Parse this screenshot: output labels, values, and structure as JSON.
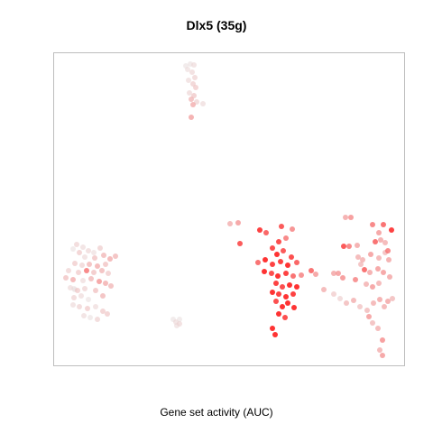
{
  "chart_data": {
    "type": "scatter",
    "title": "Dlx5 (35g)",
    "xlabel": "Gene set activity (AUC)",
    "ylabel": "",
    "xlim": [
      0,
      390
    ],
    "ylim": [
      0,
      348
    ],
    "color_scale": {
      "low": "#e8e8e8",
      "high": "#ff1a1a"
    },
    "points": [
      {
        "x": 147,
        "y": 333,
        "v": 0.05
      },
      {
        "x": 152,
        "y": 335,
        "v": 0.06
      },
      {
        "x": 156,
        "y": 334,
        "v": 0.1
      },
      {
        "x": 149,
        "y": 329,
        "v": 0.08
      },
      {
        "x": 154,
        "y": 326,
        "v": 0.12
      },
      {
        "x": 157,
        "y": 320,
        "v": 0.15
      },
      {
        "x": 150,
        "y": 317,
        "v": 0.1
      },
      {
        "x": 155,
        "y": 313,
        "v": 0.18
      },
      {
        "x": 158,
        "y": 309,
        "v": 0.2
      },
      {
        "x": 151,
        "y": 303,
        "v": 0.12
      },
      {
        "x": 156,
        "y": 300,
        "v": 0.22
      },
      {
        "x": 153,
        "y": 296,
        "v": 0.3
      },
      {
        "x": 159,
        "y": 293,
        "v": 0.15
      },
      {
        "x": 166,
        "y": 291,
        "v": 0.1
      },
      {
        "x": 155,
        "y": 290,
        "v": 0.35
      },
      {
        "x": 153,
        "y": 276,
        "v": 0.4
      },
      {
        "x": 22,
        "y": 130,
        "v": 0.05
      },
      {
        "x": 26,
        "y": 135,
        "v": 0.15
      },
      {
        "x": 33,
        "y": 132,
        "v": 0.1
      },
      {
        "x": 29,
        "y": 126,
        "v": 0.2
      },
      {
        "x": 39,
        "y": 128,
        "v": 0.12
      },
      {
        "x": 45,
        "y": 126,
        "v": 0.08
      },
      {
        "x": 52,
        "y": 131,
        "v": 0.18
      },
      {
        "x": 35,
        "y": 121,
        "v": 0.1
      },
      {
        "x": 46,
        "y": 120,
        "v": 0.25
      },
      {
        "x": 56,
        "y": 123,
        "v": 0.3
      },
      {
        "x": 63,
        "y": 119,
        "v": 0.35
      },
      {
        "x": 69,
        "y": 122,
        "v": 0.3
      },
      {
        "x": 24,
        "y": 114,
        "v": 0.2
      },
      {
        "x": 32,
        "y": 112,
        "v": 0.15
      },
      {
        "x": 40,
        "y": 113,
        "v": 0.3
      },
      {
        "x": 49,
        "y": 111,
        "v": 0.35
      },
      {
        "x": 58,
        "y": 113,
        "v": 0.25
      },
      {
        "x": 17,
        "y": 106,
        "v": 0.15
      },
      {
        "x": 28,
        "y": 104,
        "v": 0.2
      },
      {
        "x": 37,
        "y": 106,
        "v": 0.6
      },
      {
        "x": 45,
        "y": 104,
        "v": 0.25
      },
      {
        "x": 54,
        "y": 106,
        "v": 0.3
      },
      {
        "x": 61,
        "y": 103,
        "v": 0.2
      },
      {
        "x": 14,
        "y": 98,
        "v": 0.25
      },
      {
        "x": 22,
        "y": 96,
        "v": 0.35
      },
      {
        "x": 33,
        "y": 95,
        "v": 0.1
      },
      {
        "x": 42,
        "y": 97,
        "v": 0.3
      },
      {
        "x": 51,
        "y": 94,
        "v": 0.45
      },
      {
        "x": 58,
        "y": 92,
        "v": 0.35
      },
      {
        "x": 64,
        "y": 89,
        "v": 0.3
      },
      {
        "x": 19,
        "y": 87,
        "v": 0.1
      },
      {
        "x": 27,
        "y": 84,
        "v": 0.2
      },
      {
        "x": 35,
        "y": 86,
        "v": 0.15
      },
      {
        "x": 47,
        "y": 84,
        "v": 0.25
      },
      {
        "x": 23,
        "y": 76,
        "v": 0.15
      },
      {
        "x": 31,
        "y": 78,
        "v": 0.1
      },
      {
        "x": 39,
        "y": 74,
        "v": 0.05
      },
      {
        "x": 55,
        "y": 78,
        "v": 0.3
      },
      {
        "x": 22,
        "y": 68,
        "v": 0.1
      },
      {
        "x": 29,
        "y": 66,
        "v": 0.15
      },
      {
        "x": 38,
        "y": 64,
        "v": 0.2
      },
      {
        "x": 47,
        "y": 66,
        "v": 0.1
      },
      {
        "x": 55,
        "y": 61,
        "v": 0.2
      },
      {
        "x": 34,
        "y": 56,
        "v": 0.1
      },
      {
        "x": 41,
        "y": 54,
        "v": 0.05
      },
      {
        "x": 49,
        "y": 52,
        "v": 0.15
      },
      {
        "x": 60,
        "y": 58,
        "v": 0.2
      },
      {
        "x": 24,
        "y": 85,
        "v": 0.05
      },
      {
        "x": 23,
        "y": 86,
        "v": 0.05
      },
      {
        "x": 196,
        "y": 158,
        "v": 0.35
      },
      {
        "x": 205,
        "y": 159,
        "v": 0.45
      },
      {
        "x": 207,
        "y": 136,
        "v": 0.8
      },
      {
        "x": 229,
        "y": 151,
        "v": 0.9
      },
      {
        "x": 236,
        "y": 148,
        "v": 0.75
      },
      {
        "x": 253,
        "y": 155,
        "v": 0.8
      },
      {
        "x": 265,
        "y": 152,
        "v": 0.55
      },
      {
        "x": 250,
        "y": 138,
        "v": 0.85
      },
      {
        "x": 258,
        "y": 142,
        "v": 0.6
      },
      {
        "x": 243,
        "y": 131,
        "v": 0.85
      },
      {
        "x": 248,
        "y": 124,
        "v": 0.95
      },
      {
        "x": 255,
        "y": 128,
        "v": 0.8
      },
      {
        "x": 264,
        "y": 121,
        "v": 0.85
      },
      {
        "x": 227,
        "y": 115,
        "v": 0.7
      },
      {
        "x": 235,
        "y": 118,
        "v": 0.95
      },
      {
        "x": 243,
        "y": 113,
        "v": 0.9
      },
      {
        "x": 252,
        "y": 116,
        "v": 0.9
      },
      {
        "x": 260,
        "y": 112,
        "v": 0.95
      },
      {
        "x": 270,
        "y": 115,
        "v": 0.75
      },
      {
        "x": 234,
        "y": 105,
        "v": 0.95
      },
      {
        "x": 242,
        "y": 103,
        "v": 0.85
      },
      {
        "x": 249,
        "y": 100,
        "v": 0.95
      },
      {
        "x": 258,
        "y": 103,
        "v": 0.9
      },
      {
        "x": 266,
        "y": 100,
        "v": 0.7
      },
      {
        "x": 275,
        "y": 101,
        "v": 0.55
      },
      {
        "x": 286,
        "y": 106,
        "v": 0.7
      },
      {
        "x": 291,
        "y": 102,
        "v": 0.45
      },
      {
        "x": 247,
        "y": 92,
        "v": 0.9
      },
      {
        "x": 254,
        "y": 88,
        "v": 0.85
      },
      {
        "x": 262,
        "y": 90,
        "v": 0.95
      },
      {
        "x": 270,
        "y": 88,
        "v": 0.95
      },
      {
        "x": 243,
        "y": 82,
        "v": 0.95
      },
      {
        "x": 250,
        "y": 80,
        "v": 0.9
      },
      {
        "x": 258,
        "y": 77,
        "v": 0.95
      },
      {
        "x": 266,
        "y": 80,
        "v": 0.9
      },
      {
        "x": 247,
        "y": 72,
        "v": 0.85
      },
      {
        "x": 254,
        "y": 66,
        "v": 0.95
      },
      {
        "x": 260,
        "y": 70,
        "v": 0.95
      },
      {
        "x": 267,
        "y": 65,
        "v": 0.95
      },
      {
        "x": 250,
        "y": 58,
        "v": 0.95
      },
      {
        "x": 257,
        "y": 54,
        "v": 0.85
      },
      {
        "x": 243,
        "y": 42,
        "v": 0.95
      },
      {
        "x": 246,
        "y": 35,
        "v": 0.95
      },
      {
        "x": 324,
        "y": 165,
        "v": 0.4
      },
      {
        "x": 330,
        "y": 165,
        "v": 0.5
      },
      {
        "x": 354,
        "y": 157,
        "v": 0.6
      },
      {
        "x": 366,
        "y": 157,
        "v": 0.7
      },
      {
        "x": 361,
        "y": 148,
        "v": 0.45
      },
      {
        "x": 375,
        "y": 151,
        "v": 0.9
      },
      {
        "x": 322,
        "y": 133,
        "v": 0.8
      },
      {
        "x": 328,
        "y": 133,
        "v": 0.6
      },
      {
        "x": 337,
        "y": 134,
        "v": 0.4
      },
      {
        "x": 357,
        "y": 138,
        "v": 0.7
      },
      {
        "x": 363,
        "y": 140,
        "v": 0.4
      },
      {
        "x": 368,
        "y": 137,
        "v": 0.35
      },
      {
        "x": 371,
        "y": 128,
        "v": 0.6
      },
      {
        "x": 338,
        "y": 121,
        "v": 0.35
      },
      {
        "x": 343,
        "y": 118,
        "v": 0.35
      },
      {
        "x": 352,
        "y": 124,
        "v": 0.45
      },
      {
        "x": 361,
        "y": 120,
        "v": 0.35
      },
      {
        "x": 368,
        "y": 126,
        "v": 0.3
      },
      {
        "x": 372,
        "y": 118,
        "v": 0.4
      },
      {
        "x": 311,
        "y": 103,
        "v": 0.4
      },
      {
        "x": 316,
        "y": 103,
        "v": 0.45
      },
      {
        "x": 321,
        "y": 98,
        "v": 0.5
      },
      {
        "x": 341,
        "y": 113,
        "v": 0.3
      },
      {
        "x": 345,
        "y": 107,
        "v": 0.7
      },
      {
        "x": 351,
        "y": 104,
        "v": 0.4
      },
      {
        "x": 360,
        "y": 108,
        "v": 0.45
      },
      {
        "x": 366,
        "y": 104,
        "v": 0.45
      },
      {
        "x": 373,
        "y": 99,
        "v": 0.4
      },
      {
        "x": 335,
        "y": 96,
        "v": 0.55
      },
      {
        "x": 347,
        "y": 91,
        "v": 0.35
      },
      {
        "x": 354,
        "y": 88,
        "v": 0.45
      },
      {
        "x": 361,
        "y": 92,
        "v": 0.35
      },
      {
        "x": 300,
        "y": 85,
        "v": 0.35
      },
      {
        "x": 311,
        "y": 80,
        "v": 0.2
      },
      {
        "x": 318,
        "y": 75,
        "v": 0.15
      },
      {
        "x": 325,
        "y": 70,
        "v": 0.3
      },
      {
        "x": 333,
        "y": 73,
        "v": 0.35
      },
      {
        "x": 340,
        "y": 66,
        "v": 0.25
      },
      {
        "x": 348,
        "y": 62,
        "v": 0.3
      },
      {
        "x": 355,
        "y": 70,
        "v": 0.35
      },
      {
        "x": 362,
        "y": 74,
        "v": 0.4
      },
      {
        "x": 367,
        "y": 66,
        "v": 0.35
      },
      {
        "x": 371,
        "y": 72,
        "v": 0.4
      },
      {
        "x": 376,
        "y": 75,
        "v": 0.3
      },
      {
        "x": 350,
        "y": 55,
        "v": 0.45
      },
      {
        "x": 354,
        "y": 48,
        "v": 0.3
      },
      {
        "x": 360,
        "y": 42,
        "v": 0.35
      },
      {
        "x": 365,
        "y": 29,
        "v": 0.5
      },
      {
        "x": 362,
        "y": 18,
        "v": 0.35
      },
      {
        "x": 365,
        "y": 12,
        "v": 0.45
      },
      {
        "x": 133,
        "y": 52,
        "v": 0.05
      },
      {
        "x": 136,
        "y": 49,
        "v": 0.1
      },
      {
        "x": 140,
        "y": 52,
        "v": 0.05
      },
      {
        "x": 140,
        "y": 47,
        "v": 0.12
      },
      {
        "x": 137,
        "y": 45,
        "v": 0.08
      }
    ]
  }
}
